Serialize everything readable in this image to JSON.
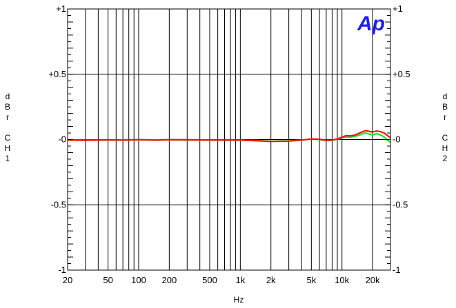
{
  "chart_data": {
    "type": "line",
    "title": "",
    "xlabel": "Hz",
    "ylabel_left": "dBr CH1",
    "ylabel_right": "dBr CH2",
    "x_scale": "log",
    "xlim": [
      20,
      30000
    ],
    "ylim": [
      -1,
      1
    ],
    "grid": true,
    "x_ticks": [
      {
        "value": 20,
        "label": "20"
      },
      {
        "value": 50,
        "label": "50"
      },
      {
        "value": 100,
        "label": "100"
      },
      {
        "value": 200,
        "label": "200"
      },
      {
        "value": 500,
        "label": "500"
      },
      {
        "value": 1000,
        "label": "1k"
      },
      {
        "value": 2000,
        "label": "2k"
      },
      {
        "value": 5000,
        "label": "5k"
      },
      {
        "value": 10000,
        "label": "10k"
      },
      {
        "value": 20000,
        "label": "20k"
      }
    ],
    "y_ticks": [
      {
        "value": 1,
        "label": "+1"
      },
      {
        "value": 0.5,
        "label": "+0.5"
      },
      {
        "value": 0,
        "label": "-0"
      },
      {
        "value": -0.5,
        "label": "-0.5"
      },
      {
        "value": -1,
        "label": "-1"
      }
    ],
    "series": [
      {
        "color": "#22dd22",
        "x": [
          20,
          30,
          40,
          50,
          70,
          100,
          150,
          200,
          300,
          500,
          700,
          1000,
          1500,
          2000,
          3000,
          4000,
          5000,
          6000,
          7000,
          8000,
          9000,
          10000,
          11000,
          12000,
          13000,
          14000,
          15000,
          16000,
          17000,
          18000,
          19000,
          20000,
          21000,
          22000,
          24000,
          26000,
          28000,
          30000
        ],
        "y": [
          -0.005,
          -0.005,
          -0.005,
          -0.004,
          -0.003,
          -0.002,
          -0.003,
          -0.002,
          -0.003,
          -0.004,
          -0.004,
          -0.005,
          -0.008,
          -0.012,
          -0.01,
          -0.004,
          0.003,
          0.0,
          -0.008,
          -0.006,
          0.002,
          0.012,
          0.02,
          0.018,
          0.022,
          0.028,
          0.035,
          0.045,
          0.05,
          0.045,
          0.04,
          0.035,
          0.04,
          0.045,
          0.035,
          0.02,
          -0.005,
          -0.02
        ]
      },
      {
        "color": "#ee1111",
        "x": [
          20,
          30,
          40,
          50,
          70,
          100,
          150,
          200,
          300,
          500,
          700,
          1000,
          1500,
          2000,
          3000,
          4000,
          5000,
          6000,
          7000,
          8000,
          9000,
          10000,
          11000,
          12000,
          13000,
          14000,
          15000,
          16000,
          17000,
          18000,
          19000,
          20000,
          21000,
          22000,
          24000,
          26000,
          28000,
          30000
        ],
        "y": [
          -0.003,
          -0.006,
          -0.004,
          -0.002,
          -0.004,
          -0.001,
          -0.004,
          -0.001,
          -0.002,
          -0.003,
          -0.004,
          -0.004,
          -0.01,
          -0.015,
          -0.012,
          -0.004,
          0.004,
          0.002,
          -0.006,
          -0.004,
          0.004,
          0.018,
          0.03,
          0.028,
          0.032,
          0.04,
          0.05,
          0.06,
          0.068,
          0.065,
          0.06,
          0.058,
          0.062,
          0.065,
          0.06,
          0.05,
          0.03,
          0.015
        ]
      }
    ],
    "logo_text": "Ap"
  }
}
